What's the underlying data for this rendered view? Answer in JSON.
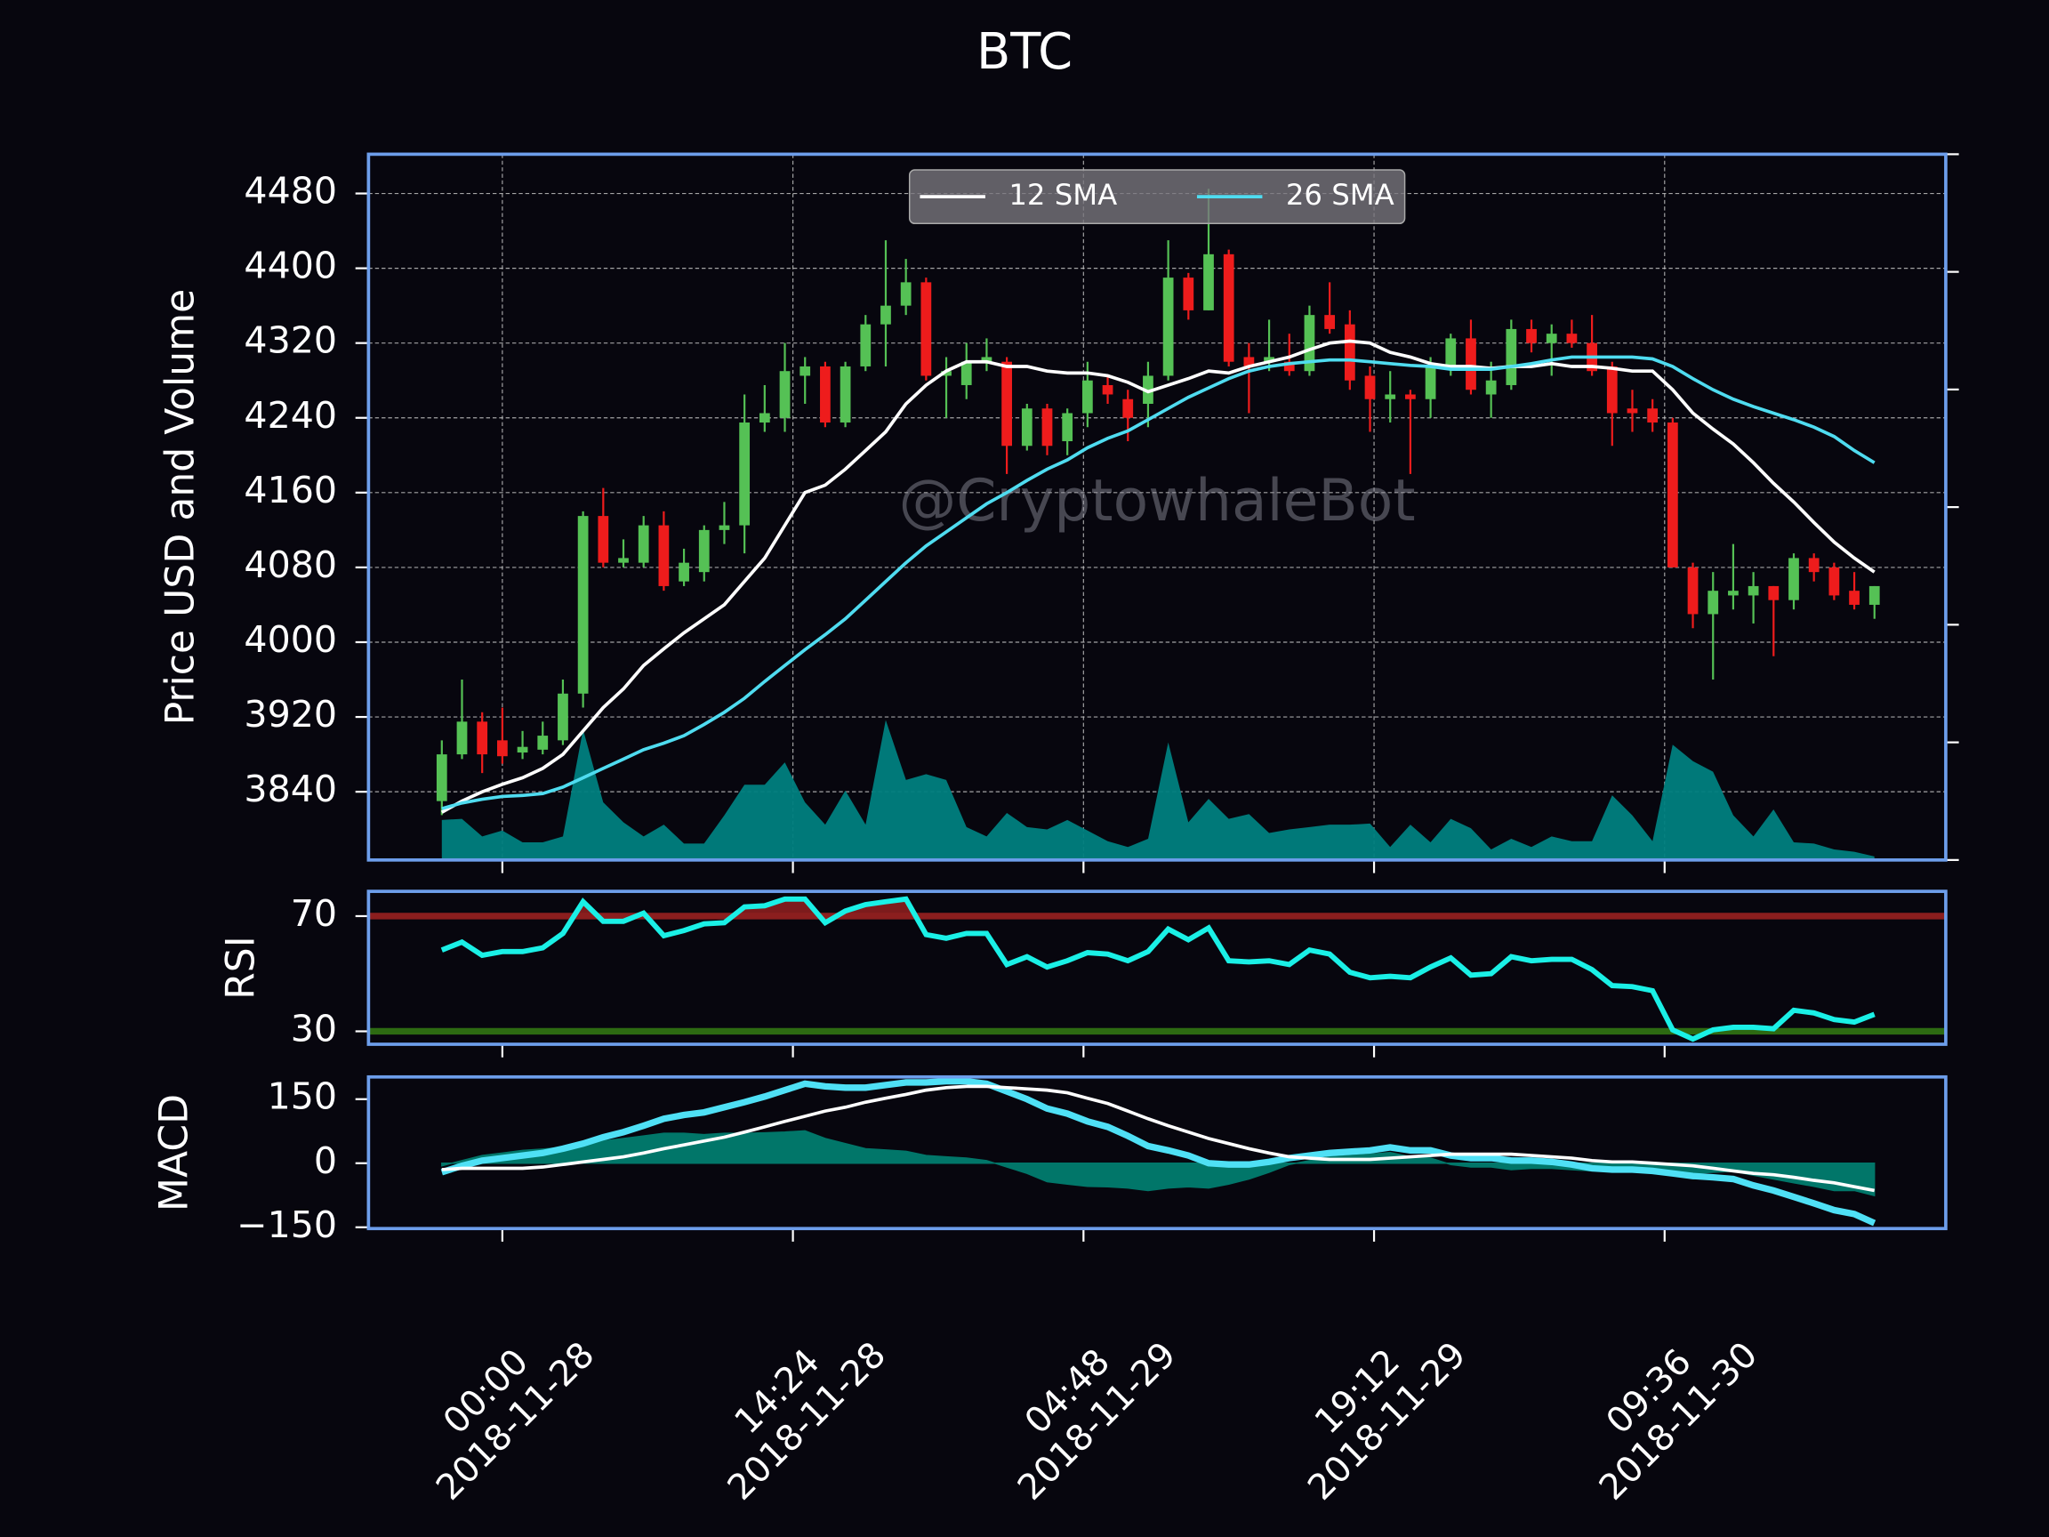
{
  "chart_data": [
    {
      "type": "candlestick",
      "title": "BTC",
      "y_label": "Price USD and Volume",
      "annotation": "@CryptowhaleBot",
      "x": [
        "2018-11-27 21:00",
        "2018-11-27 22:00",
        "2018-11-27 23:00",
        "2018-11-28 00:00",
        "2018-11-28 01:00",
        "2018-11-28 02:00",
        "2018-11-28 03:00",
        "2018-11-28 04:00",
        "2018-11-28 05:00",
        "2018-11-28 06:00",
        "2018-11-28 07:00",
        "2018-11-28 08:00",
        "2018-11-28 09:00",
        "2018-11-28 10:00",
        "2018-11-28 11:00",
        "2018-11-28 12:00",
        "2018-11-28 13:00",
        "2018-11-28 14:00",
        "2018-11-28 15:00",
        "2018-11-28 16:00",
        "2018-11-28 17:00",
        "2018-11-28 18:00",
        "2018-11-28 19:00",
        "2018-11-28 20:00",
        "2018-11-28 21:00",
        "2018-11-28 22:00",
        "2018-11-28 23:00",
        "2018-11-29 00:00",
        "2018-11-29 01:00",
        "2018-11-29 02:00",
        "2018-11-29 03:00",
        "2018-11-29 04:00",
        "2018-11-29 05:00",
        "2018-11-29 06:00",
        "2018-11-29 07:00",
        "2018-11-29 08:00",
        "2018-11-29 09:00",
        "2018-11-29 10:00",
        "2018-11-29 11:00",
        "2018-11-29 12:00",
        "2018-11-29 13:00",
        "2018-11-29 14:00",
        "2018-11-29 15:00",
        "2018-11-29 16:00",
        "2018-11-29 17:00",
        "2018-11-29 18:00",
        "2018-11-29 19:00",
        "2018-11-29 20:00",
        "2018-11-29 21:00",
        "2018-11-29 22:00",
        "2018-11-29 23:00",
        "2018-11-30 00:00",
        "2018-11-30 01:00",
        "2018-11-30 02:00",
        "2018-11-30 03:00",
        "2018-11-30 04:00",
        "2018-11-30 05:00",
        "2018-11-30 06:00",
        "2018-11-30 07:00",
        "2018-11-30 08:00",
        "2018-11-30 09:00",
        "2018-11-30 10:00",
        "2018-11-30 11:00",
        "2018-11-30 12:00",
        "2018-11-30 13:00",
        "2018-11-30 14:00",
        "2018-11-30 15:00",
        "2018-11-30 16:00",
        "2018-11-30 17:00",
        "2018-11-30 18:00",
        "2018-11-30 19:00",
        "2018-11-30 20:00"
      ],
      "xlim": [
        "2018-11-27 17:22",
        "2018-11-30 23:32"
      ],
      "xticks": [
        {
          "value": "2018-11-28 00:00",
          "label": "00:00\n2018-11-28"
        },
        {
          "value": "2018-11-28 14:24",
          "label": "14:24\n2018-11-28"
        },
        {
          "value": "2018-11-29 04:48",
          "label": "04:48\n2018-11-29"
        },
        {
          "value": "2018-11-29 19:12",
          "label": "19:12\n2018-11-29"
        },
        {
          "value": "2018-11-30 09:36",
          "label": "09:36\n2018-11-30"
        }
      ],
      "ylim": [
        3767,
        4522
      ],
      "yticks": [
        3840,
        3920,
        4000,
        4080,
        4160,
        4240,
        4320,
        4400,
        4480
      ],
      "grid": true,
      "up_color": "#55c155",
      "down_color": "#ee1c1c",
      "ohlc": [
        [
          3830,
          3895,
          3815,
          3880
        ],
        [
          3880,
          3960,
          3875,
          3915
        ],
        [
          3915,
          3925,
          3860,
          3880
        ],
        [
          3895,
          3930,
          3870,
          3878
        ],
        [
          3882,
          3905,
          3875,
          3888
        ],
        [
          3885,
          3915,
          3880,
          3900
        ],
        [
          3895,
          3960,
          3890,
          3945
        ],
        [
          3945,
          4140,
          3930,
          4135
        ],
        [
          4135,
          4165,
          4080,
          4085
        ],
        [
          4085,
          4110,
          4080,
          4090
        ],
        [
          4085,
          4135,
          4080,
          4125
        ],
        [
          4125,
          4140,
          4055,
          4060
        ],
        [
          4065,
          4100,
          4060,
          4085
        ],
        [
          4075,
          4125,
          4065,
          4120
        ],
        [
          4120,
          4150,
          4105,
          4125
        ],
        [
          4125,
          4265,
          4095,
          4235
        ],
        [
          4235,
          4275,
          4225,
          4245
        ],
        [
          4240,
          4320,
          4225,
          4290
        ],
        [
          4285,
          4305,
          4255,
          4295
        ],
        [
          4295,
          4300,
          4230,
          4235
        ],
        [
          4235,
          4300,
          4230,
          4295
        ],
        [
          4295,
          4350,
          4290,
          4340
        ],
        [
          4340,
          4430,
          4295,
          4360
        ],
        [
          4360,
          4410,
          4350,
          4385
        ],
        [
          4385,
          4390,
          4280,
          4285
        ],
        [
          4285,
          4305,
          4240,
          4290
        ],
        [
          4275,
          4320,
          4260,
          4300
        ],
        [
          4300,
          4325,
          4290,
          4305
        ],
        [
          4300,
          4305,
          4180,
          4210
        ],
        [
          4210,
          4255,
          4205,
          4250
        ],
        [
          4250,
          4255,
          4200,
          4210
        ],
        [
          4215,
          4250,
          4200,
          4245
        ],
        [
          4245,
          4300,
          4230,
          4280
        ],
        [
          4275,
          4285,
          4255,
          4265
        ],
        [
          4260,
          4270,
          4215,
          4240
        ],
        [
          4255,
          4300,
          4230,
          4285
        ],
        [
          4285,
          4430,
          4280,
          4390
        ],
        [
          4390,
          4395,
          4345,
          4355
        ],
        [
          4355,
          4485,
          4355,
          4415
        ],
        [
          4415,
          4420,
          4295,
          4300
        ],
        [
          4305,
          4320,
          4245,
          4295
        ],
        [
          4300,
          4345,
          4290,
          4305
        ],
        [
          4300,
          4330,
          4285,
          4290
        ],
        [
          4290,
          4360,
          4285,
          4350
        ],
        [
          4350,
          4385,
          4330,
          4335
        ],
        [
          4340,
          4355,
          4270,
          4280
        ],
        [
          4285,
          4295,
          4225,
          4260
        ],
        [
          4260,
          4290,
          4235,
          4265
        ],
        [
          4265,
          4270,
          4180,
          4260
        ],
        [
          4260,
          4305,
          4240,
          4295
        ],
        [
          4295,
          4330,
          4285,
          4325
        ],
        [
          4325,
          4345,
          4265,
          4270
        ],
        [
          4265,
          4300,
          4240,
          4280
        ],
        [
          4275,
          4345,
          4270,
          4335
        ],
        [
          4335,
          4345,
          4310,
          4320
        ],
        [
          4320,
          4340,
          4285,
          4330
        ],
        [
          4330,
          4345,
          4315,
          4320
        ],
        [
          4320,
          4350,
          4285,
          4290
        ],
        [
          4295,
          4300,
          4210,
          4245
        ],
        [
          4250,
          4270,
          4225,
          4245
        ],
        [
          4250,
          4260,
          4225,
          4235
        ],
        [
          4235,
          4240,
          4080,
          4080
        ],
        [
          4080,
          4085,
          4015,
          4030
        ],
        [
          4030,
          4075,
          3960,
          4055
        ],
        [
          4050,
          4105,
          4035,
          4055
        ],
        [
          4050,
          4075,
          4020,
          4060
        ],
        [
          4060,
          4060,
          3985,
          4045
        ],
        [
          4045,
          4095,
          4035,
          4090
        ],
        [
          4090,
          4095,
          4065,
          4075
        ],
        [
          4080,
          4085,
          4045,
          4050
        ],
        [
          4055,
          4075,
          4035,
          4040
        ],
        [
          4040,
          4060,
          4025,
          4060
        ]
      ],
      "series": [
        {
          "name": "12 SMA",
          "color": "#ffffff",
          "values": [
            3818,
            3830,
            3840,
            3848,
            3855,
            3865,
            3880,
            3905,
            3930,
            3950,
            3975,
            3993,
            4010,
            4025,
            4040,
            4065,
            4090,
            4125,
            4160,
            4168,
            4185,
            4205,
            4225,
            4255,
            4275,
            4290,
            4300,
            4300,
            4295,
            4295,
            4290,
            4288,
            4288,
            4285,
            4278,
            4268,
            4275,
            4282,
            4290,
            4288,
            4295,
            4300,
            4305,
            4313,
            4320,
            4322,
            4320,
            4310,
            4305,
            4298,
            4295,
            4295,
            4293,
            4295,
            4295,
            4298,
            4295,
            4295,
            4293,
            4290,
            4290,
            4270,
            4245,
            4228,
            4212,
            4192,
            4170,
            4150,
            4128,
            4107,
            4090,
            4075
          ]
        },
        {
          "name": "26 SMA",
          "color": "#4fdcf0",
          "values": [
            3822,
            3828,
            3832,
            3835,
            3836,
            3838,
            3845,
            3855,
            3865,
            3875,
            3885,
            3892,
            3900,
            3912,
            3925,
            3940,
            3958,
            3975,
            3992,
            4008,
            4025,
            4045,
            4065,
            4085,
            4103,
            4118,
            4133,
            4148,
            4160,
            4173,
            4185,
            4195,
            4208,
            4218,
            4226,
            4238,
            4250,
            4262,
            4272,
            4282,
            4290,
            4295,
            4298,
            4300,
            4302,
            4302,
            4300,
            4298,
            4296,
            4295,
            4292,
            4292,
            4292,
            4295,
            4298,
            4302,
            4305,
            4305,
            4305,
            4305,
            4303,
            4295,
            4282,
            4270,
            4260,
            4252,
            4245,
            4238,
            4230,
            4220,
            4205,
            4192
          ]
        }
      ],
      "legend": "upper center",
      "volume": {
        "axis": "y2",
        "color": "#008080",
        "values": [
          0.34,
          0.35,
          0.2,
          0.25,
          0.15,
          0.15,
          0.2,
          1.11,
          0.49,
          0.32,
          0.2,
          0.3,
          0.14,
          0.14,
          0.38,
          0.64,
          0.64,
          0.83,
          0.49,
          0.3,
          0.59,
          0.3,
          1.19,
          0.68,
          0.73,
          0.68,
          0.28,
          0.2,
          0.4,
          0.28,
          0.26,
          0.34,
          0.25,
          0.16,
          0.11,
          0.18,
          1.0,
          0.32,
          0.52,
          0.35,
          0.39,
          0.23,
          0.26,
          0.28,
          0.3,
          0.3,
          0.31,
          0.11,
          0.3,
          0.15,
          0.35,
          0.27,
          0.09,
          0.18,
          0.11,
          0.2,
          0.16,
          0.16,
          0.55,
          0.38,
          0.16,
          0.98,
          0.84,
          0.75,
          0.38,
          0.2,
          0.43,
          0.15,
          0.14,
          0.09,
          0.07,
          0.03
        ]
      },
      "y2lim": [
        0,
        6
      ],
      "y2ticks": [
        0,
        1,
        2,
        3,
        4,
        5,
        6
      ]
    },
    {
      "type": "rsi",
      "y_label": "RSI",
      "ylim": [
        25.5,
        78.6
      ],
      "yticks": [
        30,
        70
      ],
      "overbought": 70,
      "oversold": 30,
      "overbought_color": "#8b1e1e",
      "oversold_color": "#2d6a12",
      "color": "#1af0e6",
      "values": [
        58.2,
        61,
        56.4,
        57.7,
        57.7,
        59,
        64,
        75,
        68.2,
        68.2,
        71,
        63.2,
        65,
        67.3,
        67.7,
        73.2,
        73.6,
        75.9,
        75.9,
        67.7,
        71.8,
        74,
        75,
        75.9,
        63.6,
        62.3,
        64,
        64,
        53.2,
        55.9,
        52.3,
        54.5,
        57.3,
        56.8,
        54.5,
        57.7,
        65.5,
        61.8,
        65.9,
        54.5,
        54.1,
        54.5,
        53.2,
        58.2,
        56.8,
        50.5,
        48.6,
        49.1,
        48.6,
        52.3,
        55.5,
        49.5,
        50,
        55.9,
        54.5,
        55,
        55,
        51.4,
        45.9,
        45.5,
        44.1,
        30.5,
        27.3,
        30.5,
        31.4,
        31.4,
        30.9,
        37.3,
        36.4,
        34.1,
        33.2,
        35.9
      ]
    },
    {
      "type": "macd",
      "y_label": "MACD",
      "ylim": [
        -153,
        202
      ],
      "yticks": [
        {
          "value": -150,
          "label": "−150"
        },
        0,
        150
      ],
      "series": [
        {
          "color": "#4fe0f5",
          "values": [
            -21,
            -6,
            6,
            12,
            18,
            24,
            34,
            46,
            61,
            73,
            88,
            104,
            113,
            119,
            131,
            143,
            156,
            171,
            186,
            180,
            177,
            177,
            183,
            189,
            189,
            192,
            192,
            186,
            168,
            150,
            128,
            116,
            98,
            85,
            64,
            40,
            30,
            18,
            0,
            -3,
            -3,
            3,
            12,
            18,
            24,
            27,
            30,
            37,
            30,
            30,
            18,
            12,
            12,
            6,
            6,
            3,
            -3,
            -12,
            -15,
            -15,
            -18,
            -24,
            -30,
            -33,
            -37,
            -52,
            -64,
            -79,
            -94,
            -110,
            -119,
            -140
          ]
        },
        {
          "color": "#ffffff",
          "values": [
            -15,
            -12,
            -12,
            -12,
            -12,
            -9,
            -3,
            3,
            9,
            15,
            24,
            34,
            43,
            52,
            61,
            73,
            85,
            98,
            110,
            122,
            131,
            143,
            152,
            161,
            171,
            177,
            180,
            180,
            177,
            174,
            171,
            165,
            152,
            140,
            122,
            104,
            88,
            73,
            58,
            46,
            34,
            24,
            15,
            12,
            9,
            9,
            9,
            12,
            15,
            18,
            21,
            21,
            21,
            21,
            18,
            15,
            12,
            6,
            3,
            3,
            0,
            -3,
            -6,
            -12,
            -18,
            -24,
            -27,
            -33,
            -40,
            -46,
            -55,
            -64
          ]
        }
      ],
      "histogram": {
        "color": "#008b7a",
        "values": [
          -6,
          6,
          18,
          24,
          30,
          33,
          37,
          43,
          52,
          58,
          64,
          70,
          70,
          67,
          70,
          70,
          71,
          73,
          76,
          58,
          46,
          34,
          31,
          28,
          18,
          15,
          12,
          6,
          -9,
          -24,
          -43,
          -49,
          -54,
          -55,
          -58,
          -64,
          -58,
          -55,
          -58,
          -49,
          -37,
          -21,
          -3,
          6,
          15,
          18,
          21,
          25,
          15,
          12,
          -3,
          -9,
          -9,
          -15,
          -12,
          -12,
          -15,
          -18,
          -18,
          -18,
          -18,
          -21,
          -24,
          -21,
          -19,
          -28,
          -37,
          -46,
          -54,
          -64,
          -64,
          -76
        ]
      }
    }
  ]
}
